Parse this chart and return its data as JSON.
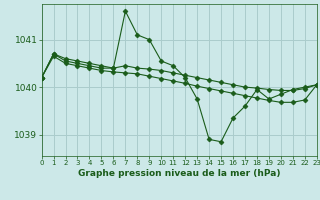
{
  "title": "Graphe pression niveau de la mer (hPa)",
  "bg_color": "#cce8e8",
  "grid_color": "#aacccc",
  "line_color": "#1a5c1a",
  "marker_color": "#1a5c1a",
  "xlim": [
    0,
    23
  ],
  "ylim": [
    1038.55,
    1041.75
  ],
  "yticks": [
    1039,
    1040,
    1041
  ],
  "xticks": [
    0,
    1,
    2,
    3,
    4,
    5,
    6,
    7,
    8,
    9,
    10,
    11,
    12,
    13,
    14,
    15,
    16,
    17,
    18,
    19,
    20,
    21,
    22,
    23
  ],
  "series": [
    [
      1040.2,
      1040.7,
      1040.6,
      1040.55,
      1040.5,
      1040.45,
      1040.4,
      1041.6,
      1041.1,
      1041.0,
      1040.55,
      1040.45,
      1040.2,
      1039.75,
      1038.9,
      1038.85,
      1039.35,
      1039.6,
      1039.95,
      1039.75,
      1039.85,
      1039.95,
      1040.0,
      1040.05
    ],
    [
      1040.2,
      1040.7,
      1040.55,
      1040.5,
      1040.45,
      1040.4,
      1040.4,
      1040.45,
      1040.4,
      1040.38,
      1040.35,
      1040.3,
      1040.25,
      1040.2,
      1040.15,
      1040.1,
      1040.05,
      1040.0,
      1039.98,
      1039.95,
      1039.93,
      1039.93,
      1039.97,
      1040.05
    ],
    [
      1040.2,
      1040.65,
      1040.5,
      1040.45,
      1040.4,
      1040.35,
      1040.32,
      1040.3,
      1040.28,
      1040.23,
      1040.18,
      1040.13,
      1040.08,
      1040.02,
      1039.97,
      1039.92,
      1039.87,
      1039.82,
      1039.77,
      1039.72,
      1039.68,
      1039.68,
      1039.73,
      1040.05
    ]
  ]
}
